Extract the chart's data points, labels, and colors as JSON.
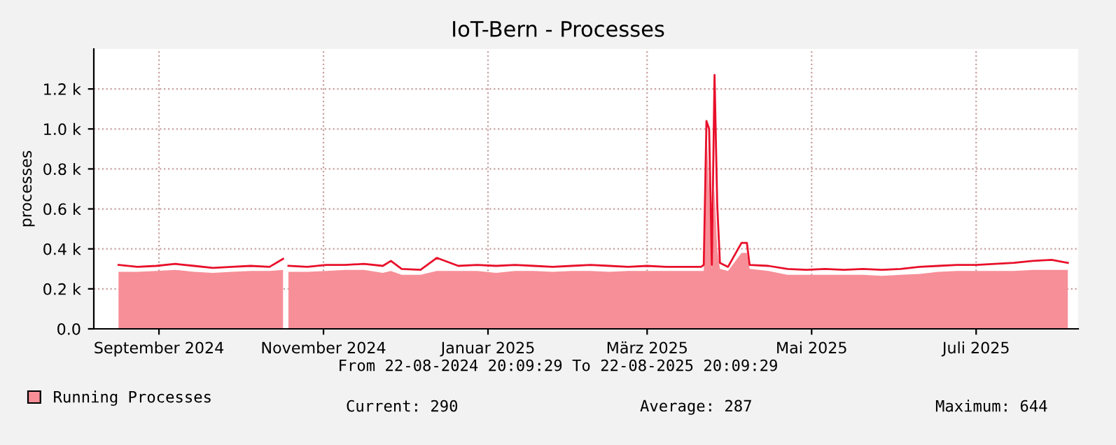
{
  "chart_data": {
    "type": "area",
    "title": "IoT-Bern - Processes",
    "subtitle": "From 22-08-2024 20:09:29 To 22-08-2025 20:09:29",
    "ylabel": "processes",
    "x": [
      "2024-09-01",
      "2024-09-08",
      "2024-09-15",
      "2024-09-22",
      "2024-09-29",
      "2024-10-06",
      "2024-10-13",
      "2024-10-20",
      "2024-10-27",
      "2024-11-01",
      "2024-11-02",
      "2024-11-03",
      "2024-11-10",
      "2024-11-17",
      "2024-11-24",
      "2024-12-01",
      "2024-12-08",
      "2024-12-11",
      "2024-12-15",
      "2024-12-22",
      "2024-12-28",
      "2025-01-05",
      "2025-01-12",
      "2025-01-19",
      "2025-01-26",
      "2025-02-02",
      "2025-02-09",
      "2025-02-16",
      "2025-02-23",
      "2025-03-02",
      "2025-03-09",
      "2025-03-16",
      "2025-03-23",
      "2025-03-30",
      "2025-04-05",
      "2025-04-06",
      "2025-04-07",
      "2025-04-08",
      "2025-04-09",
      "2025-04-10",
      "2025-04-11",
      "2025-04-12",
      "2025-04-15",
      "2025-04-20",
      "2025-04-22",
      "2025-04-23",
      "2025-04-30",
      "2025-05-07",
      "2025-05-14",
      "2025-05-21",
      "2025-05-28",
      "2025-06-04",
      "2025-06-11",
      "2025-06-18",
      "2025-06-25",
      "2025-07-02",
      "2025-07-09",
      "2025-07-16",
      "2025-07-23",
      "2025-07-30",
      "2025-08-06",
      "2025-08-13",
      "2025-08-19"
    ],
    "series": [
      {
        "name": "Running Processes",
        "color": "#f78f98",
        "values": [
          285,
          285,
          290,
          295,
          285,
          280,
          285,
          290,
          290,
          295,
          null,
          285,
          285,
          290,
          295,
          295,
          280,
          290,
          270,
          270,
          290,
          290,
          290,
          280,
          290,
          290,
          285,
          290,
          290,
          285,
          290,
          290,
          290,
          290,
          290,
          290,
          1000,
          700,
          300,
          700,
          400,
          300,
          290,
          380,
          380,
          300,
          290,
          270,
          270,
          270,
          270,
          270,
          265,
          270,
          275,
          285,
          290,
          290,
          290,
          290,
          295,
          295,
          295
        ]
      },
      {
        "type": "line",
        "color": "#e8102a",
        "values": [
          320,
          310,
          315,
          325,
          315,
          305,
          310,
          315,
          310,
          350,
          null,
          315,
          310,
          320,
          320,
          325,
          315,
          340,
          300,
          295,
          355,
          315,
          320,
          315,
          320,
          315,
          310,
          315,
          320,
          315,
          310,
          315,
          310,
          310,
          310,
          320,
          1040,
          1000,
          320,
          1270,
          620,
          330,
          310,
          430,
          430,
          320,
          315,
          300,
          295,
          300,
          295,
          300,
          295,
          300,
          310,
          315,
          320,
          320,
          325,
          330,
          340,
          345,
          330
        ]
      }
    ],
    "xlim": [
      "2024-08-22T20:09",
      "2025-08-22T20:09"
    ],
    "xticks": [
      {
        "value": "2024-09-16",
        "label": "September 2024"
      },
      {
        "value": "2024-11-16",
        "label": "November 2024"
      },
      {
        "value": "2025-01-16",
        "label": "Januar 2025"
      },
      {
        "value": "2025-03-16",
        "label": "März 2025"
      },
      {
        "value": "2025-05-16",
        "label": "Mai 2025"
      },
      {
        "value": "2025-07-16",
        "label": "Juli 2025"
      }
    ],
    "ylim": [
      0,
      1400
    ],
    "yticks": [
      {
        "value": 0,
        "label": "0.0"
      },
      {
        "value": 200,
        "label": "0.2 k"
      },
      {
        "value": 400,
        "label": "0.4 k"
      },
      {
        "value": 600,
        "label": "0.6 k"
      },
      {
        "value": 800,
        "label": "0.8 k"
      },
      {
        "value": 1000,
        "label": "1.0 k"
      },
      {
        "value": 1200,
        "label": "1.2 k"
      }
    ],
    "grid": true,
    "legend": "bottom left",
    "annotations": [
      "Current: 290",
      "Average: 287",
      "Maximum: 644"
    ]
  }
}
